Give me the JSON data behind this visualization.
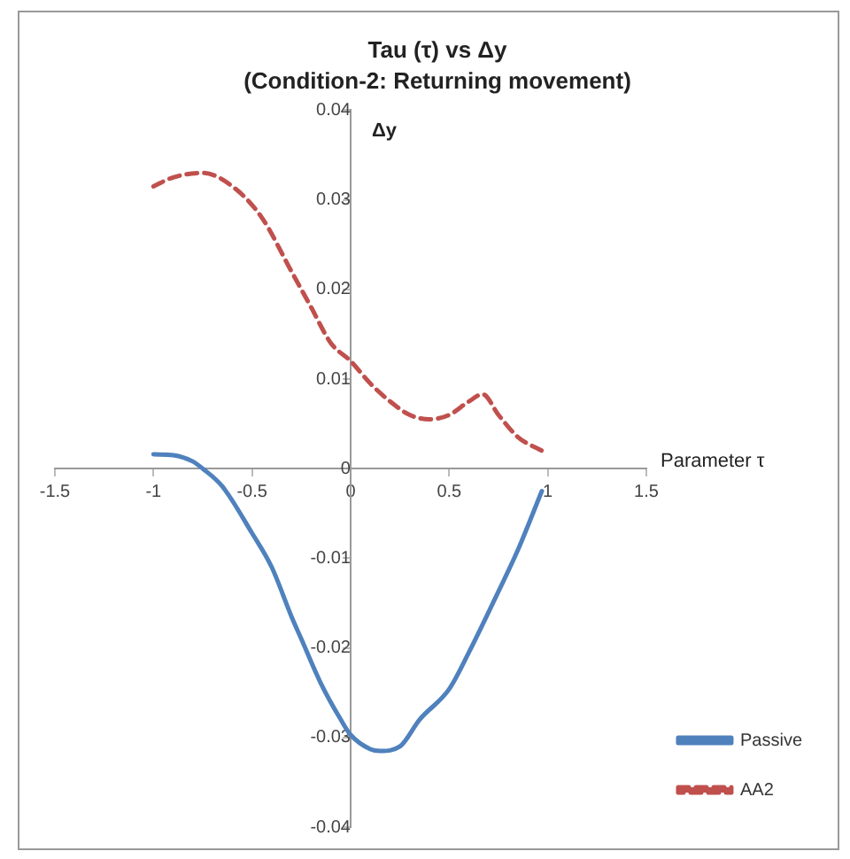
{
  "chart_data": {
    "type": "line",
    "title": "Tau (τ) vs Δy",
    "subtitle": "(Condition-2: Returning movement)",
    "xlabel": "Parameter τ",
    "ylabel": "Δy",
    "xlim": [
      -1.5,
      1.5
    ],
    "xticks": [
      -1.5,
      -1,
      -0.5,
      0,
      0.5,
      1,
      1.5
    ],
    "ylim": [
      -0.04,
      0.04
    ],
    "yticks": [
      -0.04,
      -0.03,
      -0.02,
      -0.01,
      0,
      0.01,
      0.02,
      0.03,
      0.04
    ],
    "grid": false,
    "legend": "right",
    "marker": "none",
    "series": [
      {
        "name": "Passive",
        "color": "#4f81bd",
        "line_style": "solid",
        "x": [
          -1,
          -0.9,
          -0.8,
          -0.75,
          -0.65,
          -0.5,
          -0.4,
          -0.3,
          -0.25,
          -0.15,
          -0.05,
          0,
          0.1,
          0.15,
          0.25,
          0.35,
          0.5,
          0.6,
          0.75,
          0.85,
          0.97
        ],
        "values": [
          0.0016,
          0.0015,
          0.0008,
          0,
          -0.002,
          -0.0072,
          -0.011,
          -0.0165,
          -0.019,
          -0.024,
          -0.028,
          -0.0297,
          -0.0313,
          -0.0315,
          -0.031,
          -0.028,
          -0.0246,
          -0.0205,
          -0.0137,
          -0.009,
          -0.0025
        ]
      },
      {
        "name": "AA2",
        "color": "#c0504d",
        "line_style": "dashed",
        "x": [
          -1,
          -0.9,
          -0.75,
          -0.6,
          -0.45,
          -0.3,
          -0.2,
          -0.1,
          0,
          0.1,
          0.2,
          0.3,
          0.4,
          0.5,
          0.6,
          0.67,
          0.75,
          0.85,
          0.97
        ],
        "values": [
          0.0315,
          0.0325,
          0.033,
          0.0315,
          0.028,
          0.022,
          0.018,
          0.014,
          0.012,
          0.0095,
          0.0075,
          0.006,
          0.0055,
          0.006,
          0.0075,
          0.0083,
          0.006,
          0.0035,
          0.002
        ]
      }
    ]
  }
}
